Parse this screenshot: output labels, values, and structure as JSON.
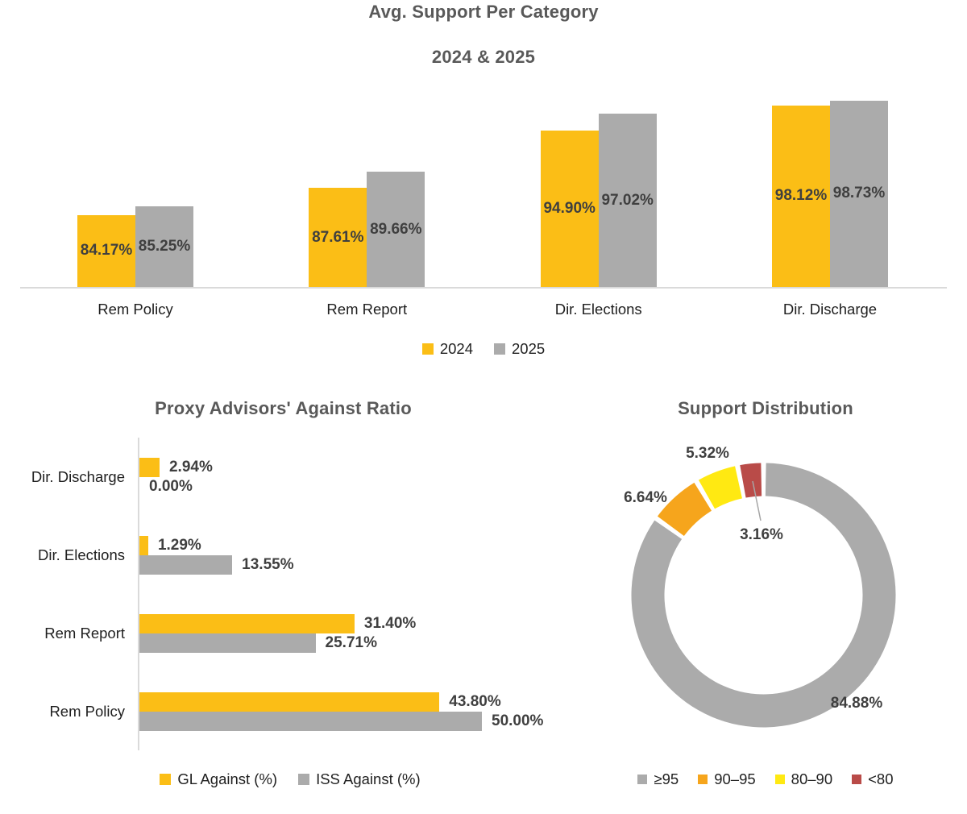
{
  "palette": {
    "gold": "#FBBE16",
    "gray": "#ABABAB",
    "orange": "#F6A51C",
    "yellow": "#FFE912",
    "red": "#B94B48",
    "title_text": "#595959",
    "value_label_text": "#3F3F3F",
    "body_text": "#1F1F1F",
    "axis_line": "#DADADA",
    "leader_line": "#A6A6A6",
    "background": "#FFFFFF"
  },
  "chart_data": [
    {
      "type": "bar",
      "title": "Avg. Support Per Category",
      "subtitle": "2024 & 2025",
      "categories": [
        "Rem Policy",
        "Rem Report",
        "Dir. Elections",
        "Dir. Discharge"
      ],
      "series": [
        {
          "name": "2024",
          "color": "#FBBE16",
          "values": [
            84.17,
            87.61,
            94.9,
            98.12
          ],
          "labels": [
            "84.17%",
            "87.61%",
            "94.90%",
            "98.12%"
          ]
        },
        {
          "name": "2025",
          "color": "#ABABAB",
          "values": [
            85.25,
            89.66,
            97.02,
            98.73
          ],
          "labels": [
            "85.25%",
            "89.66%",
            "97.02%",
            "98.73%"
          ]
        }
      ],
      "ylim": [
        75,
        100
      ],
      "grid": false,
      "value_labels_position": "inside-center",
      "legend_position": "bottom"
    },
    {
      "type": "bar-horizontal",
      "title": "Proxy Advisors' Against Ratio",
      "categories": [
        "Dir. Discharge",
        "Dir. Elections",
        "Rem Report",
        "Rem Policy"
      ],
      "series": [
        {
          "name": "GL Against (%)",
          "color": "#FBBE16",
          "values": [
            2.94,
            1.29,
            31.4,
            43.8
          ],
          "labels": [
            "2.94%",
            "1.29%",
            "31.40%",
            "43.80%"
          ]
        },
        {
          "name": "ISS Against (%)",
          "color": "#ABABAB",
          "values": [
            0.0,
            13.55,
            25.71,
            50.0
          ],
          "labels": [
            "0.00%",
            "13.55%",
            "25.71%",
            "50.00%"
          ]
        }
      ],
      "xlim": [
        0,
        50
      ],
      "grid": false,
      "value_labels_position": "outside-end",
      "legend_position": "bottom"
    },
    {
      "type": "pie",
      "donut": true,
      "title": "Support Distribution",
      "slices": [
        {
          "label": "≥95",
          "value": 84.88,
          "display": "84.88%",
          "color": "#ABABAB"
        },
        {
          "label": "90–95",
          "value": 6.64,
          "display": "6.64%",
          "color": "#F6A51C"
        },
        {
          "label": "80–90",
          "value": 5.32,
          "display": "5.32%",
          "color": "#FFE912"
        },
        {
          "label": "<80",
          "value": 3.16,
          "display": "3.16%",
          "color": "#B94B48"
        }
      ],
      "start_angle_deg": 0,
      "direction": "clockwise",
      "legend_position": "bottom"
    }
  ]
}
